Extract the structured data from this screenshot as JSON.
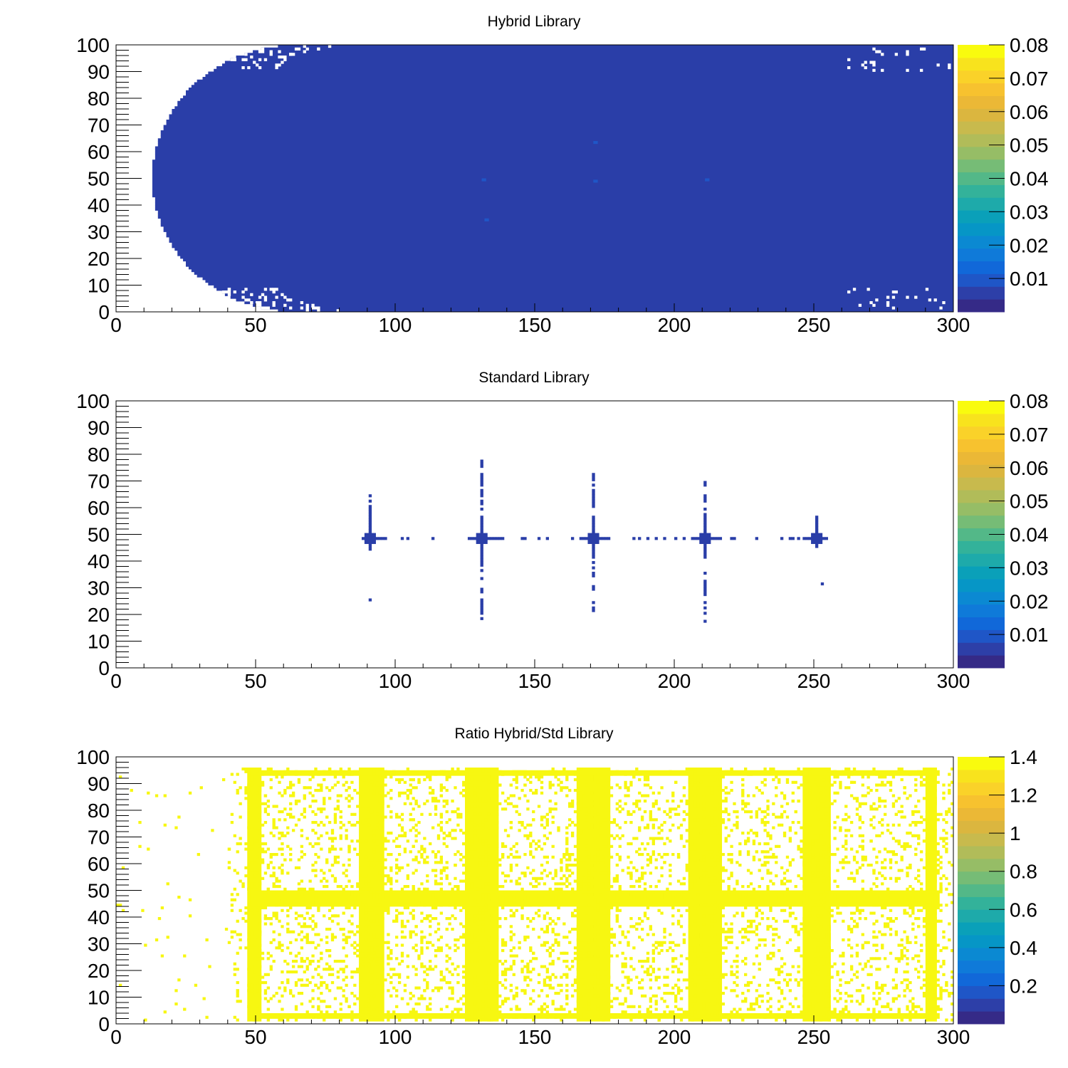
{
  "chart_data": [
    {
      "type": "heatmap",
      "title": "Hybrid Library",
      "xlabel": "",
      "ylabel": "",
      "xlim": [
        0,
        300
      ],
      "ylim": [
        0,
        100
      ],
      "x_ticks": [
        "0",
        "50",
        "100",
        "150",
        "200",
        "250",
        "300"
      ],
      "y_ticks": [
        "0",
        "10",
        "20",
        "30",
        "40",
        "50",
        "60",
        "70",
        "80",
        "90",
        "100"
      ],
      "zlim": [
        0,
        0.08
      ],
      "z_ticks": [
        "0.01",
        "0.02",
        "0.03",
        "0.04",
        "0.05",
        "0.06",
        "0.07",
        "0.08"
      ],
      "fill_value": 0.0015,
      "fill_color": "#2a3ea8",
      "region": "capsule: filled where x >= 13 + 52*(1 - sqrt(1 - ((y-50)/50)^2)), x <= 300, y in [0, 100]",
      "hotspots": [
        {
          "x": 131,
          "y": 49,
          "z": 0.006
        },
        {
          "x": 171,
          "y": 48.5,
          "z": 0.006
        },
        {
          "x": 211,
          "y": 49,
          "z": 0.006
        },
        {
          "x": 171,
          "y": 63,
          "z": 0.005
        },
        {
          "x": 132,
          "y": 34,
          "z": 0.005
        }
      ],
      "grid": false,
      "legend": "colorbar-right"
    },
    {
      "type": "heatmap",
      "title": "Standard Library",
      "xlabel": "",
      "ylabel": "",
      "xlim": [
        0,
        300
      ],
      "ylim": [
        0,
        100
      ],
      "x_ticks": [
        "0",
        "50",
        "100",
        "150",
        "200",
        "250",
        "300"
      ],
      "y_ticks": [
        "0",
        "10",
        "20",
        "30",
        "40",
        "50",
        "60",
        "70",
        "80",
        "90",
        "100"
      ],
      "zlim": [
        0,
        0.08
      ],
      "z_ticks": [
        "0.01",
        "0.02",
        "0.03",
        "0.04",
        "0.05",
        "0.06",
        "0.07",
        "0.08"
      ],
      "fill_color": "#2a3ea8",
      "horizontal_line_y": 48.5,
      "horizontal_line_x": [
        88,
        255
      ],
      "vertical_lines": [
        {
          "x": 91,
          "y": [
            44,
            65
          ]
        },
        {
          "x": 131,
          "y": [
            18,
            79
          ]
        },
        {
          "x": 171,
          "y": [
            19,
            73
          ]
        },
        {
          "x": 211,
          "y": [
            17,
            70
          ]
        },
        {
          "x": 251,
          "y": [
            45,
            57
          ]
        }
      ],
      "isolated_points": [
        {
          "x": 91,
          "y": 25
        },
        {
          "x": 253,
          "y": 31
        }
      ],
      "grid": false,
      "legend": "colorbar-right"
    },
    {
      "type": "heatmap",
      "title": "Ratio Hybrid/Std Library",
      "xlabel": "",
      "ylabel": "",
      "xlim": [
        0,
        300
      ],
      "ylim": [
        0,
        100
      ],
      "x_ticks": [
        "0",
        "50",
        "100",
        "150",
        "200",
        "250",
        "300"
      ],
      "y_ticks": [
        "0",
        "10",
        "20",
        "30",
        "40",
        "50",
        "60",
        "70",
        "80",
        "90",
        "100"
      ],
      "zlim": [
        0,
        1.4
      ],
      "z_ticks": [
        "0.2",
        "0.4",
        "0.6",
        "0.8",
        "1",
        "1.2",
        "1.4"
      ],
      "fill_value": 1.4,
      "fill_color": "#f7f711",
      "dense_bands_x": [
        [
          47,
          52
        ],
        [
          87,
          96
        ],
        [
          125,
          137
        ],
        [
          165,
          177
        ],
        [
          205,
          217
        ],
        [
          246,
          256
        ],
        [
          290,
          294
        ]
      ],
      "dense_band_y": [
        44,
        50
      ],
      "border_y_bottom": [
        2,
        4
      ],
      "border_y_top": [
        93,
        95
      ],
      "scatter_region": {
        "x": [
          40,
          300
        ],
        "y": [
          1,
          96
        ]
      },
      "sparse_region": {
        "x": [
          0,
          40
        ],
        "y": [
          0,
          95
        ]
      },
      "grid": false,
      "legend": "colorbar-right"
    }
  ]
}
